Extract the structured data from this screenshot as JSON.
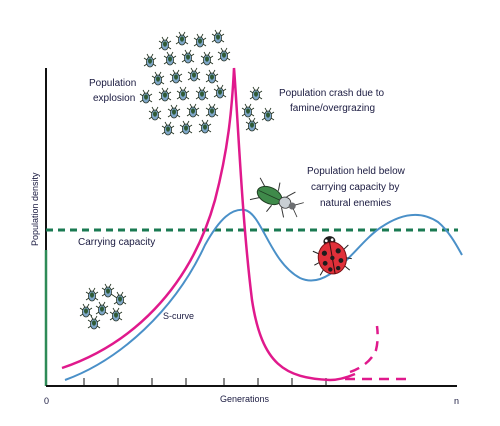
{
  "axes": {
    "y_label": "Population density",
    "x_label": "Generations",
    "x_start": "0",
    "x_end": "n"
  },
  "annotations": {
    "explosion_line1": "Population",
    "explosion_line2": "explosion",
    "crash_line1": "Population crash due to",
    "crash_line2": "famine/overgrazing",
    "held_line1": "Population held below",
    "held_line2": "carrying capacity by",
    "held_line3": "natural enemies",
    "carrying_capacity": "Carrying capacity",
    "s_curve": "S-curve"
  },
  "colors": {
    "explosion_curve": "#e0198c",
    "s_curve": "#4a90c8",
    "carrying_capacity": "#1a7a52",
    "axis": "#111111",
    "axis_green": "#2e8b57"
  },
  "icons": [
    "aphid-icon",
    "ground-beetle-icon",
    "ladybug-icon"
  ]
}
